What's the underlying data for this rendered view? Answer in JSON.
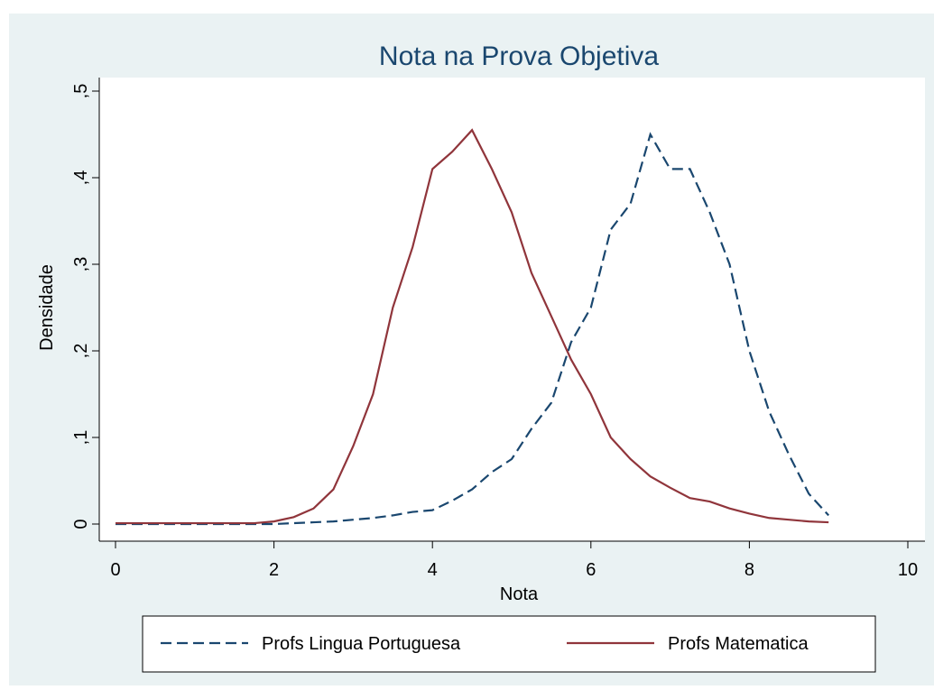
{
  "chart_data": {
    "type": "line",
    "title": "Nota na Prova Objetiva",
    "x_label": "Nota",
    "y_label": "Densidade",
    "x": [
      0,
      0.25,
      0.5,
      0.75,
      1,
      1.25,
      1.5,
      1.75,
      2,
      2.25,
      2.5,
      2.75,
      3,
      3.25,
      3.5,
      3.75,
      4,
      4.25,
      4.5,
      4.75,
      5,
      5.25,
      5.5,
      5.75,
      6,
      6.25,
      6.5,
      6.75,
      7,
      7.25,
      7.5,
      7.75,
      8,
      8.25,
      8.5,
      8.75,
      9
    ],
    "series": [
      {
        "name": "Profs Lingua Portuguesa",
        "color": "#1a476f",
        "dash": true,
        "values": [
          0,
          0,
          0,
          0,
          0,
          0,
          0,
          0,
          0,
          0.001,
          0.002,
          0.003,
          0.005,
          0.007,
          0.01,
          0.014,
          0.016,
          0.027,
          0.04,
          0.06,
          0.075,
          0.11,
          0.14,
          0.21,
          0.25,
          0.34,
          0.37,
          0.45,
          0.41,
          0.41,
          0.36,
          0.3,
          0.2,
          0.13,
          0.08,
          0.035,
          0.01
        ]
      },
      {
        "name": "Profs Matematica",
        "color": "#90353b",
        "dash": false,
        "values": [
          0.001,
          0.001,
          0.001,
          0.001,
          0.001,
          0.001,
          0.001,
          0.001,
          0.003,
          0.008,
          0.018,
          0.04,
          0.09,
          0.15,
          0.25,
          0.32,
          0.41,
          0.43,
          0.455,
          0.41,
          0.36,
          0.29,
          0.24,
          0.19,
          0.15,
          0.1,
          0.075,
          0.055,
          0.042,
          0.03,
          0.026,
          0.018,
          0.012,
          0.007,
          0.005,
          0.003,
          0.002
        ]
      }
    ],
    "xlim": [
      0,
      10
    ],
    "xticks": [
      0,
      2,
      4,
      6,
      8,
      10
    ],
    "ylim": [
      0,
      0.5
    ],
    "yticks": [
      0,
      {
        "value": 0.1,
        "label": ",1"
      },
      {
        "value": 0.2,
        "label": ",2"
      },
      {
        "value": 0.3,
        "label": ",3"
      },
      {
        "value": 0.4,
        "label": ",4"
      },
      {
        "value": 0.5,
        "label": ",5"
      }
    ]
  }
}
